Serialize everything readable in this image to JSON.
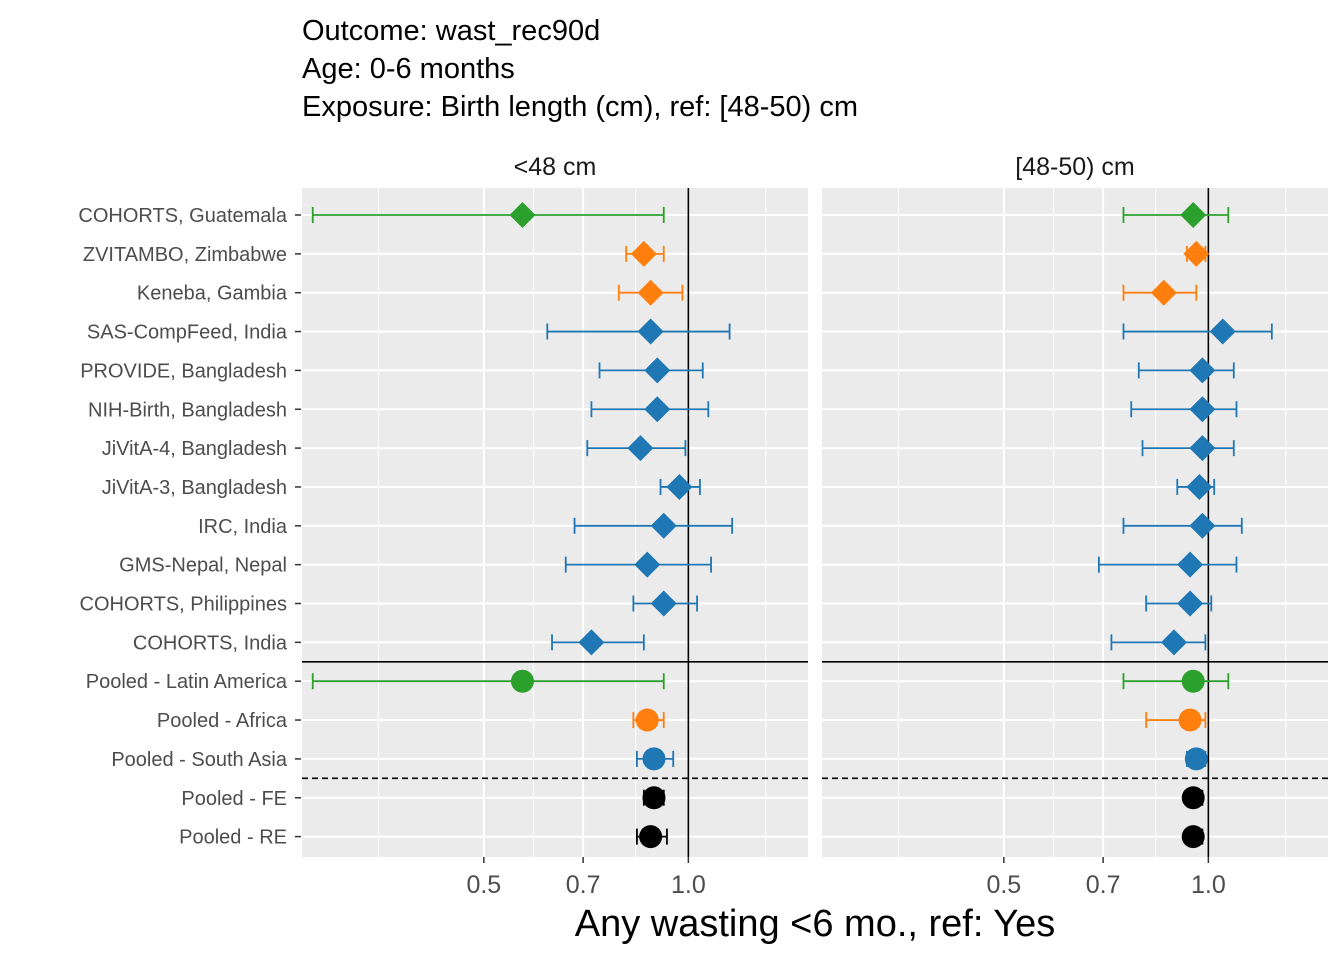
{
  "title_lines": [
    "Outcome: wast_rec90d",
    "Age: 0-6 months",
    "Exposure: Birth length (cm), ref: [48-50) cm"
  ],
  "colors": {
    "Latin America": "#2CA02C",
    "Africa": "#FF7F0E",
    "South Asia": "#1F77B4",
    "Pooled": "#000000",
    "panel_bg": "#EBEBEB",
    "grid": "#FFFFFF"
  },
  "chart_data": {
    "type": "forest",
    "xlabel": "Any wasting  <6 mo., ref: Yes",
    "x_scale": "log",
    "x_ticks": [
      0.5,
      0.7,
      1.0
    ],
    "x_tick_labels": [
      "0.5",
      "0.7",
      "1.0"
    ],
    "xlim": [
      0.27,
      1.5
    ],
    "reference_line": 1.0,
    "row_labels": [
      "COHORTS, Guatemala",
      "ZVITAMBO, Zimbabwe",
      "Keneba, Gambia",
      "SAS-CompFeed, India",
      "PROVIDE, Bangladesh",
      "NIH-Birth, Bangladesh",
      "JiVitA-4, Bangladesh",
      "JiVitA-3, Bangladesh",
      "IRC, India",
      "GMS-Nepal, Nepal",
      "COHORTS, Philippines",
      "COHORTS, India",
      "Pooled - Latin America",
      "Pooled - Africa",
      "Pooled - South Asia",
      "Pooled - FE",
      "Pooled - RE"
    ],
    "row_region": [
      "Latin America",
      "Africa",
      "Africa",
      "South Asia",
      "South Asia",
      "South Asia",
      "South Asia",
      "South Asia",
      "South Asia",
      "South Asia",
      "South Asia",
      "South Asia",
      "Latin America",
      "Africa",
      "South Asia",
      "Pooled",
      "Pooled"
    ],
    "row_shape": [
      "diamond",
      "diamond",
      "diamond",
      "diamond",
      "diamond",
      "diamond",
      "diamond",
      "diamond",
      "diamond",
      "diamond",
      "diamond",
      "diamond",
      "circle",
      "circle",
      "circle",
      "circle",
      "circle"
    ],
    "separators": [
      {
        "after_row": 11,
        "style": "solid"
      },
      {
        "after_row": 14,
        "style": "dashed"
      }
    ],
    "panels": [
      {
        "label": "<48 cm",
        "est": [
          0.57,
          0.86,
          0.88,
          0.88,
          0.9,
          0.9,
          0.85,
          0.97,
          0.92,
          0.87,
          0.92,
          0.72,
          0.57,
          0.87,
          0.89,
          0.89,
          0.88
        ],
        "lower": [
          0.28,
          0.81,
          0.79,
          0.62,
          0.74,
          0.72,
          0.71,
          0.91,
          0.68,
          0.66,
          0.83,
          0.63,
          0.28,
          0.83,
          0.84,
          0.86,
          0.84
        ],
        "upper": [
          0.92,
          0.92,
          0.98,
          1.15,
          1.05,
          1.07,
          0.99,
          1.04,
          1.16,
          1.08,
          1.03,
          0.86,
          0.92,
          0.92,
          0.95,
          0.92,
          0.93
        ]
      },
      {
        "label": "[48-50) cm",
        "est": [
          0.95,
          0.96,
          0.86,
          1.05,
          0.98,
          0.98,
          0.98,
          0.97,
          0.98,
          0.94,
          0.94,
          0.89,
          0.95,
          0.94,
          0.96,
          0.95,
          0.95
        ],
        "lower": [
          0.75,
          0.93,
          0.75,
          0.75,
          0.79,
          0.77,
          0.8,
          0.9,
          0.75,
          0.69,
          0.81,
          0.72,
          0.75,
          0.81,
          0.93,
          0.93,
          0.93
        ],
        "upper": [
          1.07,
          0.99,
          0.96,
          1.24,
          1.09,
          1.1,
          1.09,
          1.02,
          1.12,
          1.1,
          1.01,
          0.99,
          1.07,
          0.99,
          0.99,
          0.98,
          0.98
        ]
      }
    ]
  }
}
